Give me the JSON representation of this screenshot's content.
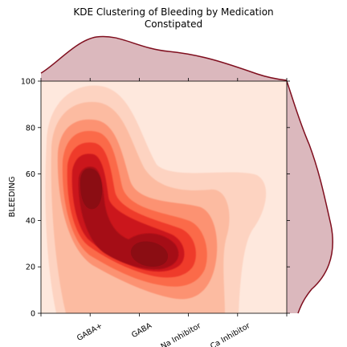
{
  "chart_data": {
    "type": "kde-contour-joint",
    "title_line1": "KDE Clustering of Bleeding by Medication",
    "title_line2": "Constipated",
    "xlabel": "",
    "ylabel": "BLEEDING",
    "categories": [
      "GABA+",
      "GABA",
      "Na Inhibitor",
      "Ca Inhibitor"
    ],
    "ylim": [
      0,
      100
    ],
    "yticks": [
      0,
      20,
      40,
      60,
      80,
      100
    ],
    "xlim": [
      -1,
      4
    ],
    "density_clusters": [
      {
        "category": "GABA+",
        "center_y": 54,
        "peak_level": 1.0
      },
      {
        "category": "GABA",
        "center_y": 25,
        "peak_level": 1.0
      },
      {
        "category": "Na Inhibitor",
        "center_y": 30,
        "peak_level": 0.45
      },
      {
        "category": "Ca Inhibitor",
        "center_y": 45,
        "peak_level": 0.15
      }
    ],
    "colors": {
      "background_fill": "#fee8dd",
      "levels": [
        "#fdd3c1",
        "#fcbba1",
        "#fc9272",
        "#fb6a4a",
        "#ef3b2c",
        "#cb181d",
        "#a50f15",
        "#8b0d13"
      ],
      "marginal_line": "#7f0e1e",
      "marginal_fill": "#dbb8bd"
    },
    "grid": false
  }
}
